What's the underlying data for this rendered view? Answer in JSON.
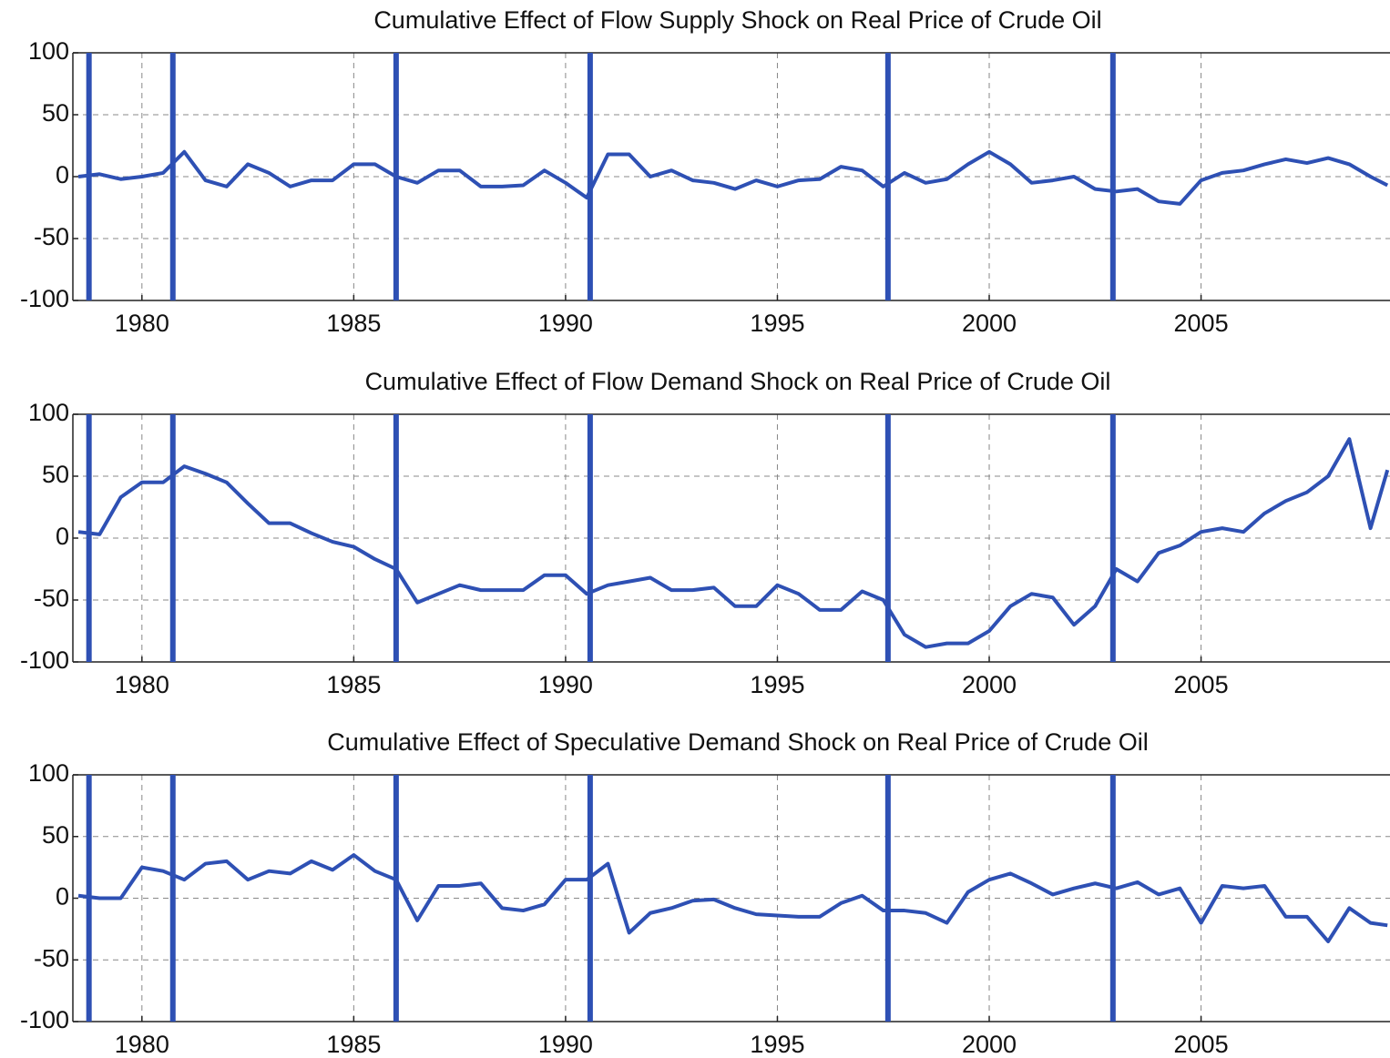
{
  "chart_data": [
    {
      "type": "line",
      "title": "Cumulative Effect of Flow Supply Shock on Real Price of Crude Oil",
      "x": [
        1978.5,
        1979,
        1979.5,
        1980,
        1980.5,
        1981,
        1981.5,
        1982,
        1982.5,
        1983,
        1983.5,
        1984,
        1984.5,
        1985,
        1985.5,
        1986,
        1986.5,
        1987,
        1987.5,
        1988,
        1988.5,
        1989,
        1989.5,
        1990,
        1990.5,
        1991,
        1991.5,
        1992,
        1992.5,
        1993,
        1993.5,
        1994,
        1994.5,
        1995,
        1995.5,
        1996,
        1996.5,
        1997,
        1997.5,
        1998,
        1998.5,
        1999,
        1999.5,
        2000,
        2000.5,
        2001,
        2001.5,
        2002,
        2002.5,
        2003,
        2003.5,
        2004,
        2004.5,
        2005,
        2005.5,
        2006,
        2006.5,
        2007,
        2007.5,
        2008,
        2008.5,
        2009,
        2009.4
      ],
      "values": [
        0,
        2,
        -2,
        0,
        3,
        20,
        -3,
        -8,
        10,
        3,
        -8,
        -3,
        -3,
        10,
        10,
        0,
        -5,
        5,
        5,
        -8,
        -8,
        -7,
        5,
        -5,
        -17,
        18,
        18,
        0,
        5,
        -3,
        -5,
        -10,
        -3,
        -8,
        -3,
        -2,
        8,
        5,
        -8,
        3,
        -5,
        -2,
        10,
        20,
        10,
        -5,
        -3,
        0,
        -10,
        -12,
        -10,
        -20,
        -22,
        -3,
        3,
        5,
        10,
        14,
        11,
        15,
        10,
        0,
        -7
      ],
      "color": "#2e50b4",
      "event_lines": [
        1978.75,
        1980.73,
        1986.0,
        1990.58,
        1997.61,
        2002.92
      ],
      "event_color": "#2e50b4",
      "xlim": [
        1978.37,
        2009.46
      ],
      "ylim": [
        -100,
        100
      ],
      "xticks": [
        1980,
        1985,
        1990,
        1995,
        2000,
        2005
      ],
      "yticks": [
        -100,
        -50,
        0,
        50,
        100
      ],
      "grid": true
    },
    {
      "type": "line",
      "title": "Cumulative Effect of Flow Demand Shock on Real Price of Crude Oil",
      "x": [
        1978.5,
        1979,
        1979.5,
        1980,
        1980.5,
        1981,
        1981.5,
        1982,
        1982.5,
        1983,
        1983.5,
        1984,
        1984.5,
        1985,
        1985.5,
        1986,
        1986.5,
        1987,
        1987.5,
        1988,
        1988.5,
        1989,
        1989.5,
        1990,
        1990.5,
        1991,
        1991.5,
        1992,
        1992.5,
        1993,
        1993.5,
        1994,
        1994.5,
        1995,
        1995.5,
        1996,
        1996.5,
        1997,
        1997.5,
        1998,
        1998.5,
        1999,
        1999.5,
        2000,
        2000.5,
        2001,
        2001.5,
        2002,
        2002.5,
        2003,
        2003.5,
        2004,
        2004.5,
        2005,
        2005.5,
        2006,
        2006.5,
        2007,
        2007.5,
        2008,
        2008.5,
        2009,
        2009.4
      ],
      "values": [
        5,
        3,
        33,
        45,
        45,
        58,
        52,
        45,
        28,
        12,
        12,
        4,
        -3,
        -7,
        -17,
        -25,
        -52,
        -45,
        -38,
        -42,
        -42,
        -42,
        -30,
        -30,
        -45,
        -38,
        -35,
        -32,
        -42,
        -42,
        -40,
        -55,
        -55,
        -38,
        -45,
        -58,
        -58,
        -43,
        -50,
        -78,
        -88,
        -85,
        -85,
        -75,
        -55,
        -45,
        -48,
        -70,
        -55,
        -25,
        -35,
        -12,
        -6,
        5,
        8,
        5,
        20,
        30,
        37,
        50,
        80,
        8,
        55
      ],
      "color": "#2e50b4",
      "event_lines": [
        1978.75,
        1980.73,
        1986.0,
        1990.58,
        1997.61,
        2002.92
      ],
      "event_color": "#2e50b4",
      "xlim": [
        1978.37,
        2009.46
      ],
      "ylim": [
        -100,
        100
      ],
      "xticks": [
        1980,
        1985,
        1990,
        1995,
        2000,
        2005
      ],
      "yticks": [
        -100,
        -50,
        0,
        50,
        100
      ],
      "grid": true
    },
    {
      "type": "line",
      "title": "Cumulative Effect of Speculative Demand Shock on Real Price of Crude Oil",
      "x": [
        1978.5,
        1979,
        1979.5,
        1980,
        1980.5,
        1981,
        1981.5,
        1982,
        1982.5,
        1983,
        1983.5,
        1984,
        1984.5,
        1985,
        1985.5,
        1986,
        1986.5,
        1987,
        1987.5,
        1988,
        1988.5,
        1989,
        1989.5,
        1990,
        1990.5,
        1991,
        1991.5,
        1992,
        1992.5,
        1993,
        1993.5,
        1994,
        1994.5,
        1995,
        1995.5,
        1996,
        1996.5,
        1997,
        1997.5,
        1998,
        1998.5,
        1999,
        1999.5,
        2000,
        2000.5,
        2001,
        2001.5,
        2002,
        2002.5,
        2003,
        2003.5,
        2004,
        2004.5,
        2005,
        2005.5,
        2006,
        2006.5,
        2007,
        2007.5,
        2008,
        2008.5,
        2009,
        2009.4
      ],
      "values": [
        2,
        0,
        0,
        25,
        22,
        15,
        28,
        30,
        15,
        22,
        20,
        30,
        23,
        35,
        22,
        15,
        -18,
        10,
        10,
        12,
        -8,
        -10,
        -5,
        15,
        15,
        28,
        -28,
        -12,
        -8,
        -2,
        -1,
        -8,
        -13,
        -14,
        -15,
        -15,
        -4,
        2,
        -10,
        -10,
        -12,
        -20,
        5,
        15,
        20,
        12,
        3,
        8,
        12,
        8,
        13,
        3,
        8,
        -20,
        10,
        8,
        10,
        -15,
        -15,
        -35,
        -8,
        -20,
        -22
      ],
      "color": "#2e50b4",
      "event_lines": [
        1978.75,
        1980.73,
        1986.0,
        1990.58,
        1997.61,
        2002.92
      ],
      "event_color": "#2e50b4",
      "xlim": [
        1978.37,
        2009.46
      ],
      "ylim": [
        -100,
        100
      ],
      "xticks": [
        1980,
        1985,
        1990,
        1995,
        2000,
        2005
      ],
      "yticks": [
        -100,
        -50,
        0,
        50,
        100
      ],
      "grid": true
    }
  ]
}
